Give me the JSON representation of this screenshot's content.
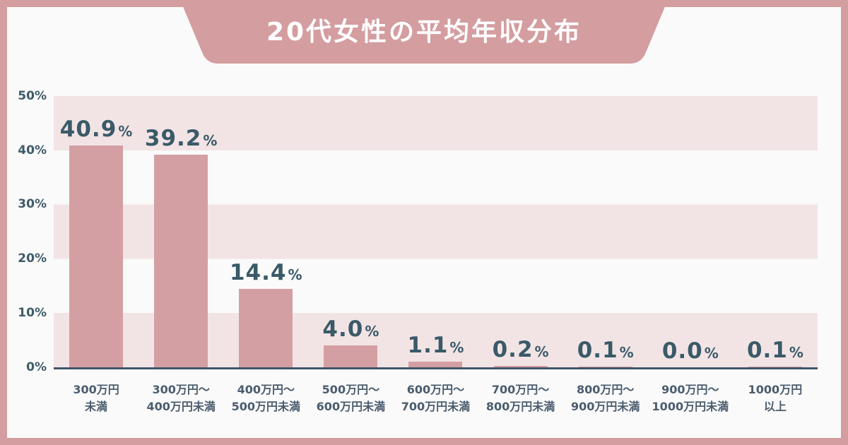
{
  "title": "20代女性の平均年収分布",
  "colors": {
    "frame_and_banner": "#d49da0",
    "bar_fill": "#d49fa3",
    "band_stripe": "#f2e4e5",
    "panel_background": "#fafafa",
    "value_text": "#3a5a68",
    "y_tick_text": "#3e5a68",
    "x_tick_text": "#4a5c6e",
    "axis_line": "#42566a",
    "title_text": "#ffffff"
  },
  "chart_data": {
    "type": "bar",
    "title": "20代女性の平均年収分布",
    "xlabel": "",
    "ylabel": "",
    "ylim": [
      0,
      50
    ],
    "grid": "horizontal-bands-every-10pct",
    "legend": "none",
    "percent_suffix": "%",
    "yticks": [
      "50%",
      "40%",
      "30%",
      "20%",
      "10%",
      "0%"
    ],
    "categories": [
      {
        "line1": "300万円",
        "line2": "未満"
      },
      {
        "line1": "300万円〜",
        "line2": "400万円未満"
      },
      {
        "line1": "400万円〜",
        "line2": "500万円未満"
      },
      {
        "line1": "500万円〜",
        "line2": "600万円未満"
      },
      {
        "line1": "600万円〜",
        "line2": "700万円未満"
      },
      {
        "line1": "700万円〜",
        "line2": "800万円未満"
      },
      {
        "line1": "800万円〜",
        "line2": "900万円未満"
      },
      {
        "line1": "900万円〜",
        "line2": "1000万円未満"
      },
      {
        "line1": "1000万円",
        "line2": "以上"
      }
    ],
    "values": [
      40.9,
      39.2,
      14.4,
      4.0,
      1.1,
      0.2,
      0.1,
      0.0,
      0.1
    ],
    "value_labels": [
      "40.9",
      "39.2",
      "14.4",
      "4.0",
      "1.1",
      "0.2",
      "0.1",
      "0.0",
      "0.1"
    ]
  }
}
